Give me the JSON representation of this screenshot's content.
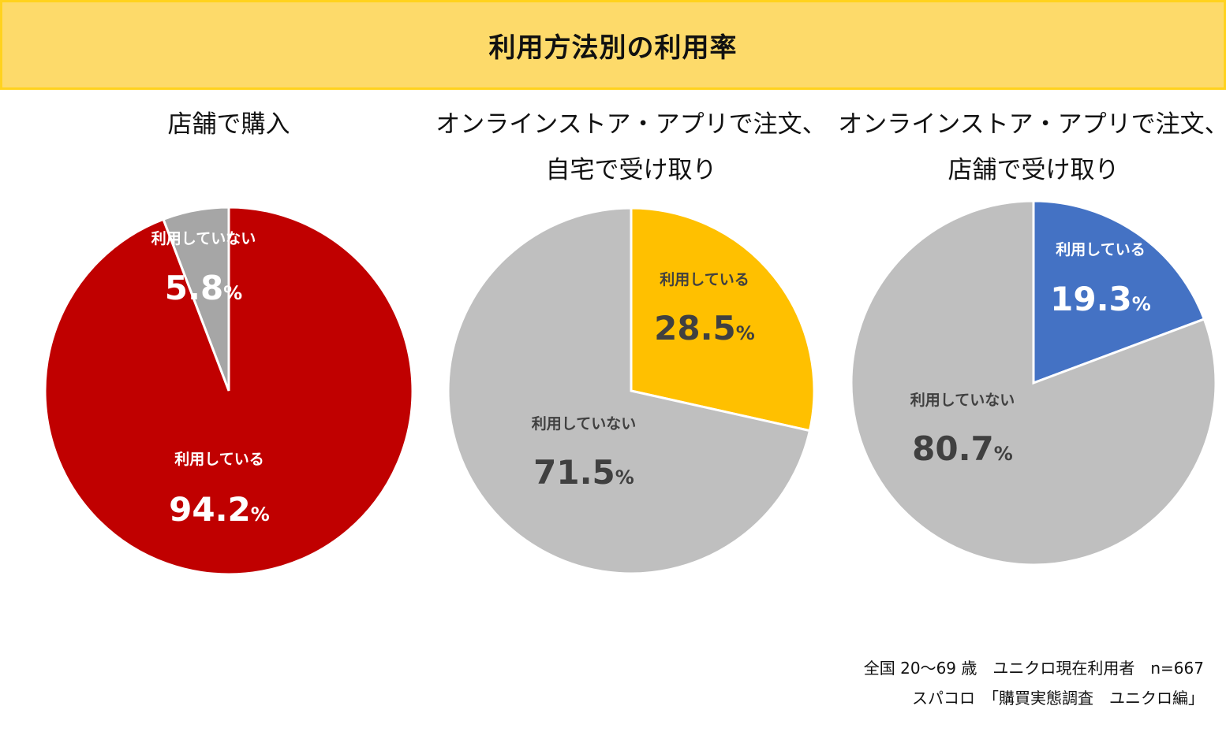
{
  "title": "利用方法別の利用率",
  "chart_data": [
    {
      "type": "pie",
      "title": "店舗で購入",
      "slices": [
        {
          "label": "利用していない",
          "value": 5.8,
          "color": "#a6a6a6",
          "text_color": "#ffffff"
        },
        {
          "label": "利用している",
          "value": 94.2,
          "color": "#c00000",
          "text_color": "#ffffff"
        }
      ]
    },
    {
      "type": "pie",
      "title": "オンラインストア・アプリで注文、自宅で受け取り",
      "title_lines": [
        "オンラインストア・アプリで注文、",
        "自宅で受け取り"
      ],
      "slices": [
        {
          "label": "利用している",
          "value": 28.5,
          "color": "#ffc000",
          "text_color": "#404040"
        },
        {
          "label": "利用していない",
          "value": 71.5,
          "color": "#bfbfbf",
          "text_color": "#404040"
        }
      ]
    },
    {
      "type": "pie",
      "title": "オンラインストア・アプリで注文、店舗で受け取り",
      "title_lines": [
        "オンラインストア・アプリで注文、",
        "店舗で受け取り"
      ],
      "slices": [
        {
          "label": "利用している",
          "value": 19.3,
          "color": "#4472c4",
          "text_color": "#ffffff"
        },
        {
          "label": "利用していない",
          "value": 80.7,
          "color": "#bfbfbf",
          "text_color": "#404040"
        }
      ]
    }
  ],
  "percent_symbol": "%",
  "footnote": {
    "line1": "全国 20～69 歳　ユニクロ現在利用者　n=667",
    "line2": "スパコロ　「購買実態調査　ユニクロ編」"
  }
}
